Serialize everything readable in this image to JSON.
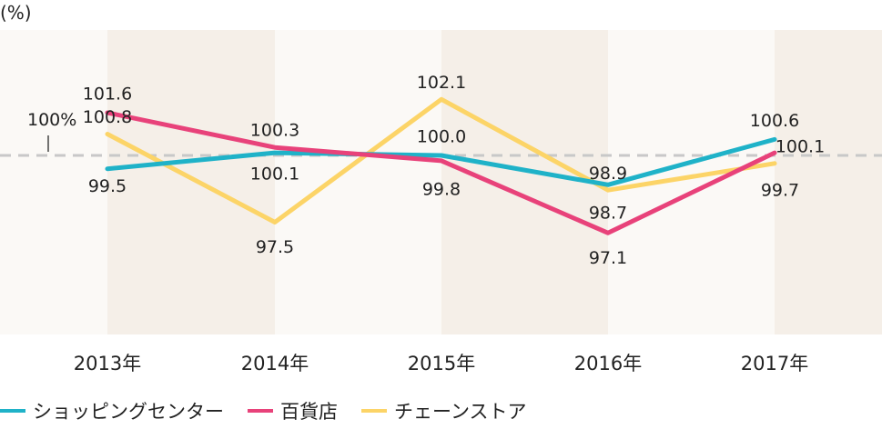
{
  "unit_label": "(%)",
  "chart_data": {
    "type": "line",
    "categories": [
      "2013年",
      "2014年",
      "2015年",
      "2016年",
      "2017年"
    ],
    "series": [
      {
        "name": "ショッピングセンター",
        "color": "#1fb2c8",
        "values": [
          99.5,
          100.1,
          100.0,
          98.9,
          100.6
        ]
      },
      {
        "name": "百貨店",
        "color": "#e8427a",
        "values": [
          101.6,
          100.3,
          99.8,
          97.1,
          100.1
        ]
      },
      {
        "name": "チェーンストア",
        "color": "#fcd467",
        "values": [
          100.8,
          97.5,
          102.1,
          98.7,
          99.7
        ]
      }
    ],
    "reference_value": 100,
    "reference_label": "100%",
    "ylim": [
      96.0,
      102.5
    ],
    "grid": false,
    "legend_position": "bottom-left",
    "band_colors": [
      "#f5efe8",
      "#fbf9f6"
    ]
  }
}
